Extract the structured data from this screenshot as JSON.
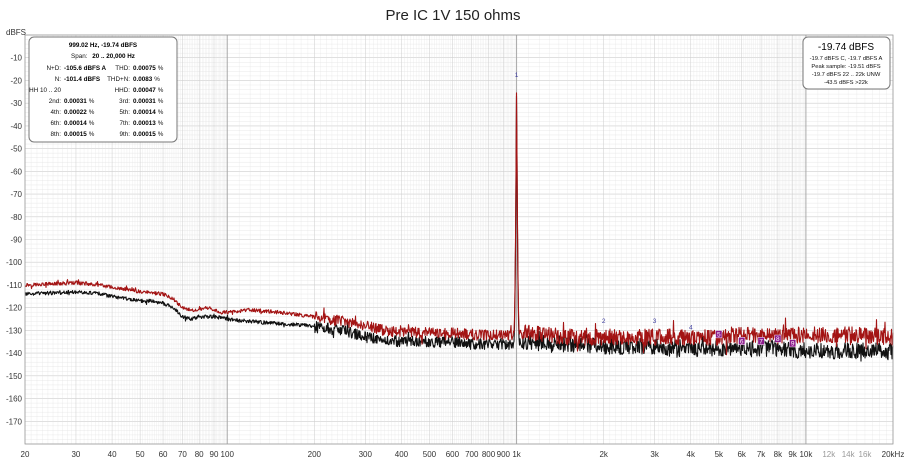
{
  "chart_data": {
    "type": "line",
    "title": "Pre IC 1V 150 ohms",
    "ylabel": "dBFS",
    "xlabel": "",
    "x_scale": "log",
    "xlim": [
      20,
      20000
    ],
    "ylim": [
      -180,
      0
    ],
    "grid": true,
    "x_ticks": [
      {
        "v": 20,
        "t": "20"
      },
      {
        "v": 30,
        "t": "30"
      },
      {
        "v": 40,
        "t": "40"
      },
      {
        "v": 50,
        "t": "50"
      },
      {
        "v": 60,
        "t": "60"
      },
      {
        "v": 70,
        "t": "70"
      },
      {
        "v": 80,
        "t": "80"
      },
      {
        "v": 90,
        "t": "90"
      },
      {
        "v": 100,
        "t": "100"
      },
      {
        "v": 200,
        "t": "200"
      },
      {
        "v": 300,
        "t": "300"
      },
      {
        "v": 400,
        "t": "400"
      },
      {
        "v": 500,
        "t": "500"
      },
      {
        "v": 600,
        "t": "600"
      },
      {
        "v": 700,
        "t": "700"
      },
      {
        "v": 800,
        "t": "800"
      },
      {
        "v": 900,
        "t": "900"
      },
      {
        "v": 1000,
        "t": "1k"
      },
      {
        "v": 2000,
        "t": "2k"
      },
      {
        "v": 3000,
        "t": "3k"
      },
      {
        "v": 4000,
        "t": "4k"
      },
      {
        "v": 5000,
        "t": "5k"
      },
      {
        "v": 6000,
        "t": "6k"
      },
      {
        "v": 7000,
        "t": "7k"
      },
      {
        "v": 8000,
        "t": "8k"
      },
      {
        "v": 9000,
        "t": "9k"
      },
      {
        "v": 10000,
        "t": "10k"
      },
      {
        "v": 12000,
        "t": "12k",
        "muted": true
      },
      {
        "v": 14000,
        "t": "14k",
        "muted": true
      },
      {
        "v": 16000,
        "t": "16k",
        "muted": true
      },
      {
        "v": 20000,
        "t": "20kHz"
      }
    ],
    "y_ticks": [
      {
        "v": -10,
        "t": "-10"
      },
      {
        "v": -20,
        "t": "-20"
      },
      {
        "v": -30,
        "t": "-30"
      },
      {
        "v": -40,
        "t": "-40"
      },
      {
        "v": -50,
        "t": "-50"
      },
      {
        "v": -60,
        "t": "-60"
      },
      {
        "v": -70,
        "t": "-70"
      },
      {
        "v": -80,
        "t": "-80"
      },
      {
        "v": -90,
        "t": "-90"
      },
      {
        "v": -100,
        "t": "-100"
      },
      {
        "v": -110,
        "t": "-110"
      },
      {
        "v": -120,
        "t": "-120"
      },
      {
        "v": -130,
        "t": "-130"
      },
      {
        "v": -140,
        "t": "-140"
      },
      {
        "v": -150,
        "t": "-150"
      },
      {
        "v": -160,
        "t": "-160"
      },
      {
        "v": -170,
        "t": "-170"
      }
    ],
    "series": [
      {
        "color": "#a31414",
        "noise_floor": [
          [
            20,
            -110
          ],
          [
            25,
            -109.5
          ],
          [
            30,
            -109
          ],
          [
            35,
            -109.8
          ],
          [
            40,
            -111
          ],
          [
            45,
            -112
          ],
          [
            50,
            -113
          ],
          [
            55,
            -113.5
          ],
          [
            60,
            -114
          ],
          [
            65,
            -116
          ],
          [
            70,
            -120
          ],
          [
            75,
            -121
          ],
          [
            80,
            -121
          ],
          [
            85,
            -120
          ],
          [
            90,
            -121
          ],
          [
            95,
            -122
          ],
          [
            100,
            -122
          ],
          [
            120,
            -121
          ],
          [
            150,
            -122
          ],
          [
            200,
            -124
          ],
          [
            250,
            -126
          ],
          [
            300,
            -128
          ],
          [
            350,
            -130
          ],
          [
            400,
            -131
          ],
          [
            500,
            -131
          ],
          [
            600,
            -131
          ],
          [
            700,
            -132
          ],
          [
            800,
            -132
          ],
          [
            900,
            -132
          ],
          [
            950,
            -132
          ],
          [
            1050,
            -131
          ],
          [
            1500,
            -133
          ],
          [
            2000,
            -133
          ],
          [
            3000,
            -133
          ],
          [
            4000,
            -133
          ],
          [
            5000,
            -133
          ],
          [
            6000,
            -132
          ],
          [
            8000,
            -132
          ],
          [
            10000,
            -132
          ],
          [
            15000,
            -132
          ],
          [
            20000,
            -133
          ]
        ],
        "peaks": [
          [
            1000,
            -19.74
          ]
        ]
      },
      {
        "color": "#111111",
        "noise_floor": [
          [
            20,
            -114
          ],
          [
            25,
            -113.5
          ],
          [
            30,
            -113
          ],
          [
            35,
            -113.5
          ],
          [
            40,
            -115
          ],
          [
            45,
            -116
          ],
          [
            50,
            -117
          ],
          [
            55,
            -117
          ],
          [
            60,
            -118
          ],
          [
            65,
            -120
          ],
          [
            70,
            -124
          ],
          [
            75,
            -125
          ],
          [
            80,
            -124
          ],
          [
            90,
            -124
          ],
          [
            100,
            -125
          ],
          [
            120,
            -126
          ],
          [
            150,
            -127
          ],
          [
            200,
            -128
          ],
          [
            250,
            -130
          ],
          [
            300,
            -133
          ],
          [
            350,
            -134
          ],
          [
            400,
            -135
          ],
          [
            500,
            -135
          ],
          [
            600,
            -135
          ],
          [
            700,
            -136
          ],
          [
            800,
            -136
          ],
          [
            900,
            -136
          ],
          [
            950,
            -136
          ],
          [
            1050,
            -135
          ],
          [
            1500,
            -136
          ],
          [
            2000,
            -137
          ],
          [
            3000,
            -137
          ],
          [
            4000,
            -138
          ],
          [
            5000,
            -138
          ],
          [
            6000,
            -138
          ],
          [
            8000,
            -138
          ],
          [
            10000,
            -139
          ],
          [
            15000,
            -139
          ],
          [
            20000,
            -139
          ]
        ],
        "peaks": [
          [
            1000,
            -21
          ]
        ]
      }
    ],
    "harmonic_markers": [
      {
        "label": "1",
        "f": 1000,
        "db": -19.74,
        "boxed": false
      },
      {
        "label": "2",
        "f": 2000,
        "db": -128,
        "boxed": false
      },
      {
        "label": "3",
        "f": 3000,
        "db": -128,
        "boxed": false
      },
      {
        "label": "4",
        "f": 4000,
        "db": -131,
        "boxed": false
      },
      {
        "label": "5",
        "f": 5000,
        "db": -134,
        "boxed": true
      },
      {
        "label": "6",
        "f": 6000,
        "db": -137,
        "boxed": true
      },
      {
        "label": "7",
        "f": 7000,
        "db": -137,
        "boxed": true
      },
      {
        "label": "8",
        "f": 8000,
        "db": -136,
        "boxed": true
      },
      {
        "label": "9",
        "f": 9000,
        "db": -138,
        "boxed": true
      }
    ]
  },
  "readout_panel": {
    "header": "999.02 Hz, -19.74 dBFS",
    "span_label": "Span:",
    "span_value": "20 .. 20,000 Hz",
    "rows": [
      {
        "l1": "N+D:",
        "v1": "-105.6 dBFS A",
        "l2": "THD:",
        "v2": "0.00075",
        "u2": "%"
      },
      {
        "l1": "N:",
        "v1": "-101.4 dBFS",
        "l2": "THD+N:",
        "v2": "0.0083",
        "u2": "%"
      },
      {
        "l1": "HH 10 .. 20",
        "v1": "",
        "l2": "HHD:",
        "v2": "0.00047",
        "u2": "%"
      },
      {
        "l1": "2nd:",
        "v1": "0.00031",
        "u1": "%",
        "l2": "3rd:",
        "v2": "0.00031",
        "u2": "%"
      },
      {
        "l1": "4th:",
        "v1": "0.00022",
        "u1": "%",
        "l2": "5th:",
        "v2": "0.00014",
        "u2": "%"
      },
      {
        "l1": "6th:",
        "v1": "0.00014",
        "u1": "%",
        "l2": "7th:",
        "v2": "0.00013",
        "u2": "%"
      },
      {
        "l1": "8th:",
        "v1": "0.00015",
        "u1": "%",
        "l2": "9th:",
        "v2": "0.00015",
        "u2": "%"
      }
    ]
  },
  "level_panel": {
    "main": "-19.74 dBFS",
    "lines": [
      "-19.7 dBFS C, -19.7 dBFS A",
      "Peak sample: -19.51 dBFS",
      "-19.7 dBFS 22 .. 22k UNW",
      "-43.5 dBFS >22k"
    ]
  },
  "colors": {
    "background": "#ffffff",
    "grid_minor": "#e3e3e3",
    "grid_major": "#a9a9a9",
    "harmonic_label": "#3b3b9e",
    "harmonic_box": "#8c1a8c"
  }
}
